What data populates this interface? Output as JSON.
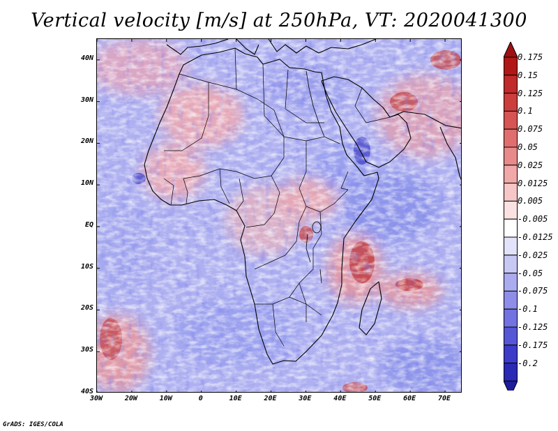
{
  "title": "Vertical velocity [m/s] at 250hPa, VT: 2020041300",
  "footer": "GrADS: IGES/COLA",
  "map": {
    "region": "Africa",
    "variable": "Vertical velocity",
    "units": "m/s",
    "level": "250hPa",
    "valid_time": "2020041300",
    "lon_range": [
      -30,
      75
    ],
    "lat_range": [
      -40,
      45
    ]
  },
  "lat_labels": [
    {
      "text": "40N",
      "lat": 40
    },
    {
      "text": "30N",
      "lat": 30
    },
    {
      "text": "20N",
      "lat": 20
    },
    {
      "text": "10N",
      "lat": 10
    },
    {
      "text": "EQ",
      "lat": 0
    },
    {
      "text": "10S",
      "lat": -10
    },
    {
      "text": "20S",
      "lat": -20
    },
    {
      "text": "30S",
      "lat": -30
    },
    {
      "text": "40S",
      "lat": -40
    }
  ],
  "lon_labels": [
    {
      "text": "30W",
      "lon": -30
    },
    {
      "text": "20W",
      "lon": -20
    },
    {
      "text": "10W",
      "lon": -10
    },
    {
      "text": "0",
      "lon": 0
    },
    {
      "text": "10E",
      "lon": 10
    },
    {
      "text": "20E",
      "lon": 20
    },
    {
      "text": "30E",
      "lon": 30
    },
    {
      "text": "40E",
      "lon": 40
    },
    {
      "text": "50E",
      "lon": 50
    },
    {
      "text": "60E",
      "lon": 60
    },
    {
      "text": "70E",
      "lon": 70
    }
  ],
  "colorbar": {
    "levels": [
      {
        "label": "0.175",
        "color": "#b01818"
      },
      {
        "label": "0.15",
        "color": "#c02a2a"
      },
      {
        "label": "0.125",
        "color": "#cc3d3d"
      },
      {
        "label": "0.1",
        "color": "#d65454"
      },
      {
        "label": "0.075",
        "color": "#e06e6e"
      },
      {
        "label": "0.05",
        "color": "#e88a8a"
      },
      {
        "label": "0.025",
        "color": "#f0a8a8"
      },
      {
        "label": "0.0125",
        "color": "#f7c6c6"
      },
      {
        "label": "0.005",
        "color": "#fbe2e2"
      },
      {
        "label": "-0.005",
        "color": "#ffffff"
      },
      {
        "label": "-0.0125",
        "color": "#e2e2fa"
      },
      {
        "label": "-0.025",
        "color": "#c8c8f4"
      },
      {
        "label": "-0.05",
        "color": "#ababef"
      },
      {
        "label": "-0.075",
        "color": "#8e8ee8"
      },
      {
        "label": "-0.1",
        "color": "#7272e0"
      },
      {
        "label": "-0.125",
        "color": "#5656d6"
      },
      {
        "label": "-0.175",
        "color": "#3c3cc8"
      },
      {
        "label": "-0.2",
        "color": "#2a2ab4"
      }
    ],
    "max_color": "#a01010",
    "min_color": "#1e1e9c"
  }
}
